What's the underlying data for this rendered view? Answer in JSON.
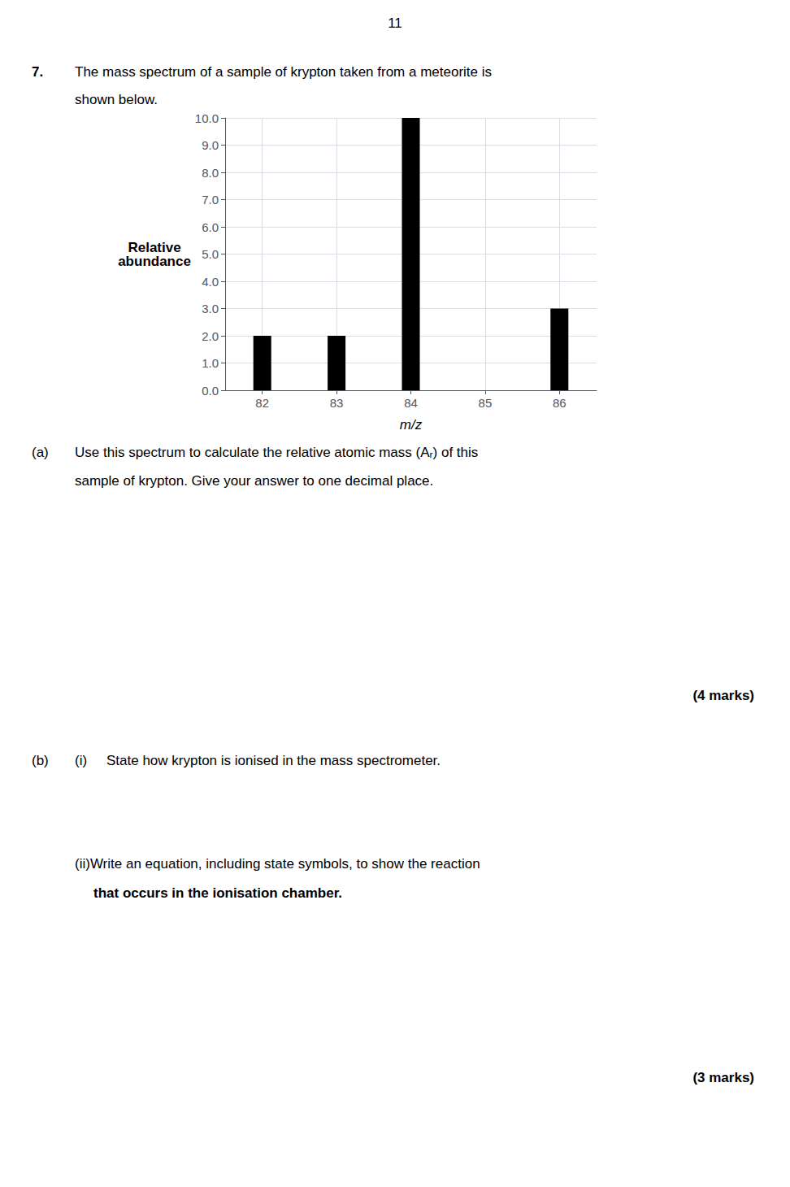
{
  "chart_data": {
    "type": "bar",
    "x": [
      82,
      83,
      84,
      86
    ],
    "values": [
      2.0,
      2.0,
      10.0,
      3.0
    ],
    "color": "#000000",
    "xlabel": "m/z",
    "ylabel": "Relative\nabundance",
    "xlim": [
      81.5,
      86.5
    ],
    "xticks": [
      82,
      83,
      84,
      85,
      86
    ],
    "ylim": [
      0.0,
      10.0
    ],
    "yticks": [
      {
        "value": 0,
        "label": "0.0"
      },
      {
        "value": 1,
        "label": "1.0"
      },
      {
        "value": 2,
        "label": "2.0"
      },
      {
        "value": 3,
        "label": "3.0"
      },
      {
        "value": 4,
        "label": "4.0"
      },
      {
        "value": 5,
        "label": "5.0"
      },
      {
        "value": 6,
        "label": "6.0"
      },
      {
        "value": 7,
        "label": "7.0"
      },
      {
        "value": 8,
        "label": "8.0"
      },
      {
        "value": 9,
        "label": "9.0"
      },
      {
        "value": 10,
        "label": "10.0"
      }
    ],
    "grid": true,
    "annotations": [
      "11",
      "7.",
      "The mass spectrum of a sample of krypton taken from a meteorite is",
      "shown below.",
      "(a)",
      "Use this spectrum to calculate the relative atomic mass (Aᵣ) of this",
      "sample of krypton. Give your answer to one decimal place.",
      "(4 marks)",
      "(b)",
      "(i)",
      "State how krypton is ionised in the mass spectrometer.",
      "(ii)Write an equation, including state symbols, to show the reaction",
      "that occurs in the ionisation chamber.",
      "(3 marks)"
    ]
  }
}
